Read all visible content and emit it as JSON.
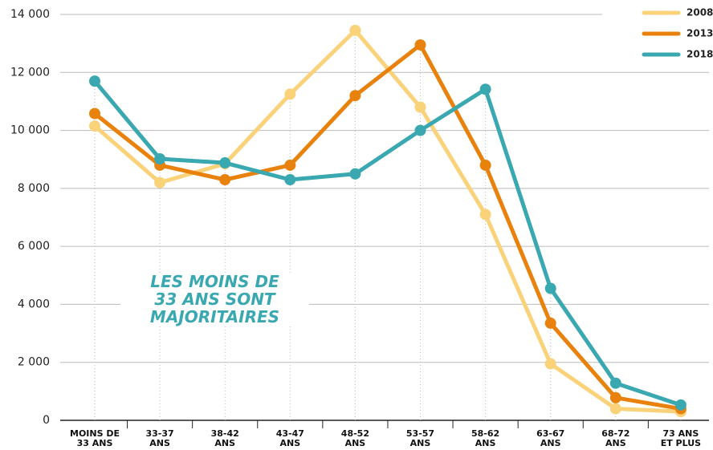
{
  "chart_data": {
    "type": "line",
    "annotation": "LES MOINS DE\n33 ANS SONT\nMAJORITAIRES",
    "categories": [
      "MOINS DE\n33 ANS",
      "33-37\nANS",
      "38-42\nANS",
      "43-47\nANS",
      "48-52\nANS",
      "53-57\nANS",
      "58-62\nANS",
      "63-67\nANS",
      "68-72\nANS",
      "73 ANS\nET PLUS"
    ],
    "series": [
      {
        "name": "2008",
        "color": "#f9d27a",
        "values": [
          10150,
          8200,
          8850,
          11250,
          13450,
          10800,
          7100,
          1950,
          400,
          300
        ]
      },
      {
        "name": "2013",
        "color": "#e8820c",
        "values": [
          10580,
          8800,
          8300,
          8800,
          11200,
          12950,
          8800,
          3350,
          780,
          400
        ]
      },
      {
        "name": "2018",
        "color": "#3aa8b0",
        "values": [
          11700,
          9020,
          8880,
          8300,
          8500,
          10000,
          11420,
          4550,
          1280,
          530
        ]
      }
    ],
    "ylim": [
      0,
      14000
    ],
    "yticks": [
      0,
      {
        "value": 2000,
        "label": "2 000"
      },
      {
        "value": 4000,
        "label": "4 000"
      },
      {
        "value": 6000,
        "label": "6 000"
      },
      {
        "value": 8000,
        "label": "8 000"
      },
      {
        "value": 10000,
        "label": "10 000"
      },
      {
        "value": 12000,
        "label": "12 000"
      },
      {
        "value": 14000,
        "label": "14 000"
      }
    ],
    "grid": true
  }
}
